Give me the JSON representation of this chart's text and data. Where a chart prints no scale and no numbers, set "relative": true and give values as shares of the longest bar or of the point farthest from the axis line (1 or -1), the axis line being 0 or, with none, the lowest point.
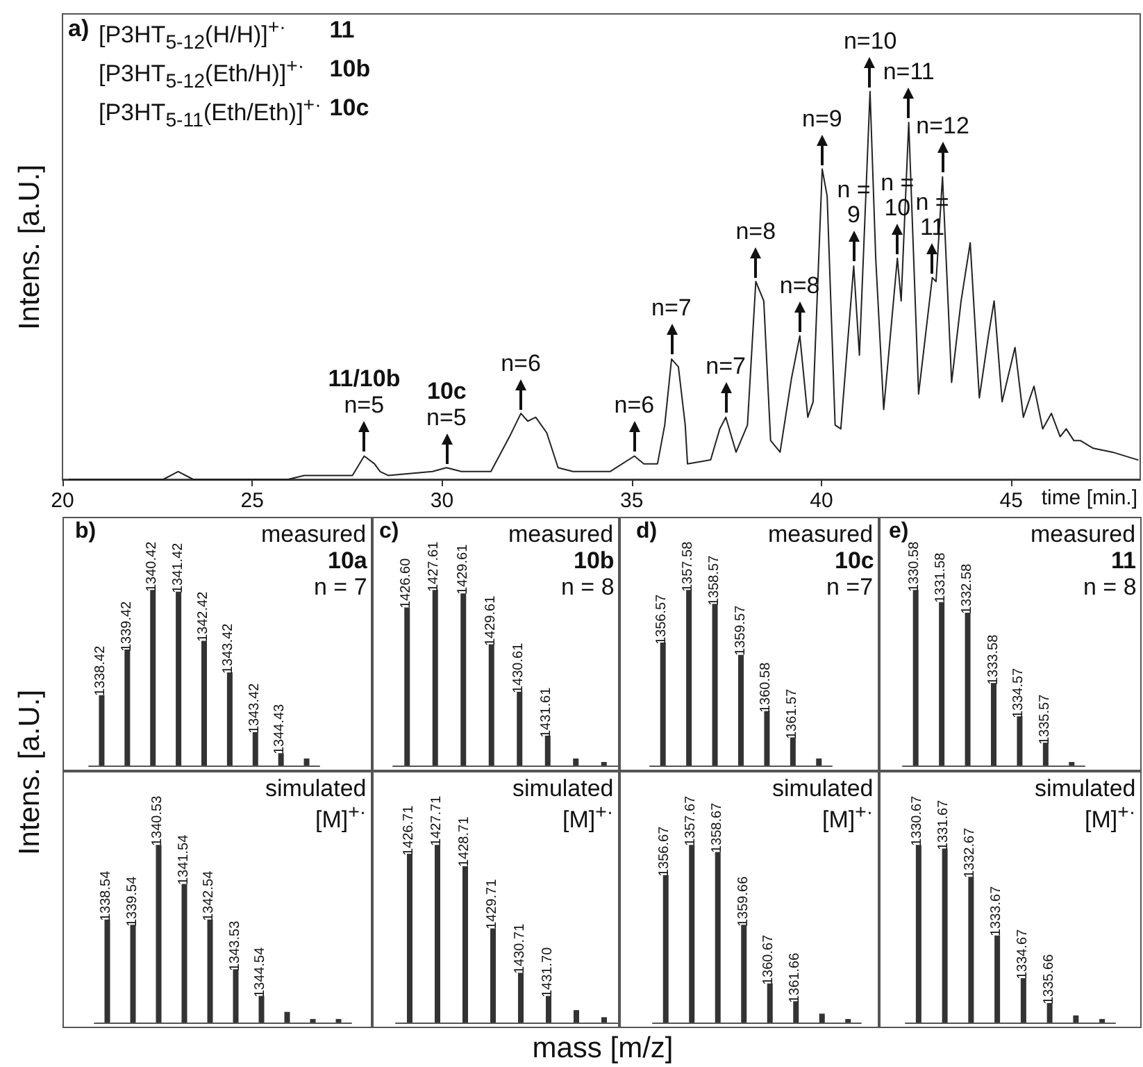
{
  "chart_data": [
    {
      "type": "line",
      "title": "a)",
      "xlabel": "time [min.]",
      "ylabel": "Intens. [a.U.]",
      "relative": true,
      "xlim": [
        20,
        48.4
      ],
      "xticks": [
        20,
        25,
        30,
        35,
        40,
        45
      ],
      "color": "#222222",
      "annotations": [
        "[P3HT$_{5-12}$(H/H)]$^{+·}$",
        "11",
        "[P3HT$_{5-12}$(Eth/H)]$^{+·}$",
        "10b",
        "[P3HT$_{5-11}$(Eth/Eth)]$^{+·}$",
        "10c",
        {
          "text": "n=5",
          "x": 27.95,
          "y": 0.06
        },
        {
          "text": "11/10b",
          "x": 27.95,
          "y": 0.06
        },
        {
          "text": "n=5",
          "x": 30.12,
          "y": 0.03
        },
        {
          "text": "10c",
          "x": 30.12,
          "y": 0.03
        },
        {
          "text": "n=6",
          "x": 32.08,
          "y": 0.17
        },
        {
          "text": "n=6",
          "x": 35.07,
          "y": 0.06
        },
        {
          "text": "n=7",
          "x": 36.05,
          "y": 0.31
        },
        {
          "text": "n=7",
          "x": 37.48,
          "y": 0.16
        },
        {
          "text": "n=8",
          "x": 38.27,
          "y": 0.51
        },
        {
          "text": "n=8",
          "x": 39.43,
          "y": 0.37
        },
        {
          "text": "n=9",
          "x": 40.02,
          "y": 0.8
        },
        {
          "text": "n =\n9",
          "x": 40.85,
          "y": 0.55
        },
        {
          "text": "n=10",
          "x": 41.28,
          "y": 1
        },
        {
          "text": "n =\n10",
          "x": 42.0,
          "y": 0.57
        },
        {
          "text": "n=11",
          "x": 42.3,
          "y": 0.92
        },
        {
          "text": "n =\n11",
          "x": 42.92,
          "y": 0.52
        },
        {
          "text": "n=12",
          "x": 43.19,
          "y": 0.78
        }
      ],
      "x": [
        20.18,
        22.66,
        23.05,
        23.44,
        25.95,
        26.37,
        27.64,
        27.95,
        28.22,
        28.37,
        28.58,
        29.75,
        30.12,
        30.51,
        31.29,
        31.78,
        32.08,
        32.26,
        32.47,
        32.76,
        33.06,
        33.45,
        34.43,
        35.07,
        35.32,
        35.68,
        35.87,
        36.05,
        36.23,
        36.41,
        36.47,
        37.08,
        37.32,
        37.48,
        37.75,
        38.05,
        38.27,
        38.48,
        38.66,
        38.91,
        39.21,
        39.43,
        39.64,
        39.78,
        40.02,
        40.15,
        40.36,
        40.51,
        40.85,
        41.0,
        41.28,
        41.43,
        41.64,
        42.0,
        42.1,
        42.3,
        42.56,
        42.92,
        43.02,
        43.19,
        43.43,
        43.68,
        43.92,
        44.16,
        44.4,
        44.55,
        44.76,
        45.1,
        45.32,
        45.6,
        45.83,
        46.06,
        46.29,
        46.45,
        46.65,
        46.82,
        47.16,
        47.67,
        48.34
      ],
      "values": [
        0,
        0,
        0.02,
        0,
        0,
        0.01,
        0.01,
        0.06,
        0.04,
        0.02,
        0.01,
        0.02,
        0.03,
        0.02,
        0.02,
        0.11,
        0.17,
        0.15,
        0.16,
        0.12,
        0.03,
        0.02,
        0.02,
        0.06,
        0.04,
        0.04,
        0.14,
        0.31,
        0.29,
        0.14,
        0.04,
        0.05,
        0.13,
        0.16,
        0.07,
        0.14,
        0.51,
        0.46,
        0.1,
        0.07,
        0.26,
        0.37,
        0.16,
        0.2,
        0.8,
        0.73,
        0.14,
        0.13,
        0.55,
        0.32,
        1,
        0.57,
        0.18,
        0.57,
        0.46,
        0.92,
        0.22,
        0.52,
        0.51,
        0.78,
        0.25,
        0.46,
        0.61,
        0.21,
        0.37,
        0.46,
        0.2,
        0.34,
        0.16,
        0.24,
        0.13,
        0.17,
        0.11,
        0.13,
        0.1,
        0.1,
        0.08,
        0.07,
        0.05
      ]
    },
    {
      "type": "bar",
      "title": "b)",
      "ylabel": "Intens. [a.U.]",
      "relative": true,
      "tick_labels": false,
      "color": "#333333",
      "annotations": [
        "measured",
        "10a",
        "n = 7",
        {
          "text": "1338.42",
          "y": 0.4
        },
        {
          "text": "1339.42",
          "y": 0.66
        },
        {
          "text": "1340.42",
          "y": 1
        },
        {
          "text": "1341.42",
          "y": 0.99
        },
        {
          "text": "1342.42",
          "y": 0.71
        },
        {
          "text": "1343.42",
          "y": 0.53
        },
        {
          "text": "1343.42",
          "y": 0.19
        },
        {
          "text": "1344.43",
          "y": 0.07
        }
      ],
      "categories": [
        null,
        null,
        null,
        null,
        null,
        null,
        null,
        null,
        null
      ],
      "values": [
        0.4,
        0.66,
        1,
        0.99,
        0.71,
        0.53,
        0.19,
        0.07,
        0.04
      ]
    },
    {
      "type": "bar",
      "relative": true,
      "tick_labels": false,
      "color": "#333333",
      "annotations": [
        "simulated",
        "[M]$^{+·}$",
        {
          "text": "1338.54",
          "y": 0.58
        },
        {
          "text": "1339.54",
          "y": 0.55
        },
        {
          "text": "1340.53",
          "y": 1
        },
        {
          "text": "1341.54",
          "y": 0.78
        },
        {
          "text": "1342.54",
          "y": 0.58
        },
        {
          "text": "1343.53",
          "y": 0.3
        },
        {
          "text": "1344.54",
          "y": 0.15
        }
      ],
      "categories": [
        null,
        null,
        null,
        null,
        null,
        null,
        null,
        null,
        null,
        null
      ],
      "values": [
        0.58,
        0.55,
        1,
        0.78,
        0.58,
        0.3,
        0.15,
        0.06,
        0.02,
        0.02
      ]
    },
    {
      "type": "bar",
      "title": "c)",
      "relative": true,
      "tick_labels": false,
      "color": "#333333",
      "annotations": [
        "measured",
        "10b",
        "n = 8",
        {
          "text": "1426.60",
          "y": 0.9
        },
        {
          "text": "1427.61",
          "y": 1
        },
        {
          "text": "1429.61",
          "y": 0.98
        },
        {
          "text": "1429.61",
          "y": 0.69
        },
        {
          "text": "1430.61",
          "y": 0.42
        },
        {
          "text": "1431.61",
          "y": 0.17
        }
      ],
      "categories": [
        null,
        null,
        null,
        null,
        null,
        null,
        null,
        null
      ],
      "values": [
        0.9,
        1,
        0.98,
        0.69,
        0.42,
        0.17,
        0.04,
        0.02
      ]
    },
    {
      "type": "bar",
      "xlabel": "mass [m/z]",
      "relative": true,
      "tick_labels": false,
      "color": "#333333",
      "annotations": [
        "simulated",
        "[M]$^{+·}$",
        {
          "text": "1426.71",
          "y": 0.95
        },
        {
          "text": "1427.71",
          "y": 1
        },
        {
          "text": "1428.71",
          "y": 0.88
        },
        {
          "text": "1429.71",
          "y": 0.53
        },
        {
          "text": "1430.71",
          "y": 0.28
        },
        {
          "text": "1431.70",
          "y": 0.15
        }
      ],
      "categories": [
        null,
        null,
        null,
        null,
        null,
        null,
        null,
        null
      ],
      "values": [
        0.95,
        1,
        0.88,
        0.53,
        0.28,
        0.15,
        0.07,
        0.03
      ]
    },
    {
      "type": "bar",
      "title": "d)",
      "relative": true,
      "tick_labels": false,
      "color": "#333333",
      "annotations": [
        "measured",
        "10c",
        "n =7",
        {
          "text": "1356.57",
          "y": 0.7
        },
        {
          "text": "1357.58",
          "y": 1
        },
        {
          "text": "1358.57",
          "y": 0.92
        },
        {
          "text": "1359.57",
          "y": 0.63
        },
        {
          "text": "1360.58",
          "y": 0.31
        },
        {
          "text": "1361.57",
          "y": 0.16
        }
      ],
      "categories": [
        null,
        null,
        null,
        null,
        null,
        null,
        null
      ],
      "values": [
        0.7,
        1,
        0.92,
        0.63,
        0.31,
        0.16,
        0.04
      ]
    },
    {
      "type": "bar",
      "relative": true,
      "tick_labels": false,
      "color": "#333333",
      "annotations": [
        "simulated",
        "[M]$^{+·}$",
        {
          "text": "1356.67",
          "y": 0.83
        },
        {
          "text": "1357.67",
          "y": 1
        },
        {
          "text": "1358.67",
          "y": 0.96
        },
        {
          "text": "1359.66",
          "y": 0.55
        },
        {
          "text": "1360.67",
          "y": 0.22
        },
        {
          "text": "1361.66",
          "y": 0.12
        }
      ],
      "categories": [
        null,
        null,
        null,
        null,
        null,
        null,
        null,
        null
      ],
      "values": [
        0.83,
        1,
        0.96,
        0.55,
        0.22,
        0.12,
        0.05,
        0.02
      ]
    },
    {
      "type": "bar",
      "title": "e)",
      "relative": true,
      "tick_labels": false,
      "color": "#333333",
      "annotations": [
        "measured",
        "11",
        "n = 8",
        {
          "text": "1330.58",
          "y": 1
        },
        {
          "text": "1331.58",
          "y": 0.93
        },
        {
          "text": "1332.58",
          "y": 0.87
        },
        {
          "text": "1333.58",
          "y": 0.47
        },
        {
          "text": "1334.57",
          "y": 0.28
        },
        {
          "text": "1335.57",
          "y": 0.13
        }
      ],
      "categories": [
        null,
        null,
        null,
        null,
        null,
        null,
        null
      ],
      "values": [
        1,
        0.93,
        0.87,
        0.47,
        0.28,
        0.13,
        0.02
      ]
    },
    {
      "type": "bar",
      "relative": true,
      "tick_labels": false,
      "color": "#333333",
      "annotations": [
        "simulated",
        "[M]$^{+·}$",
        {
          "text": "1330.67",
          "y": 1
        },
        {
          "text": "1331.67",
          "y": 0.98
        },
        {
          "text": "1332.67",
          "y": 0.82
        },
        {
          "text": "1333.67",
          "y": 0.49
        },
        {
          "text": "1334.67",
          "y": 0.25
        },
        {
          "text": "1335.66",
          "y": 0.11
        }
      ],
      "categories": [
        null,
        null,
        null,
        null,
        null,
        null,
        null,
        null
      ],
      "values": [
        1,
        0.98,
        0.82,
        0.49,
        0.25,
        0.11,
        0.04,
        0.02
      ]
    }
  ]
}
